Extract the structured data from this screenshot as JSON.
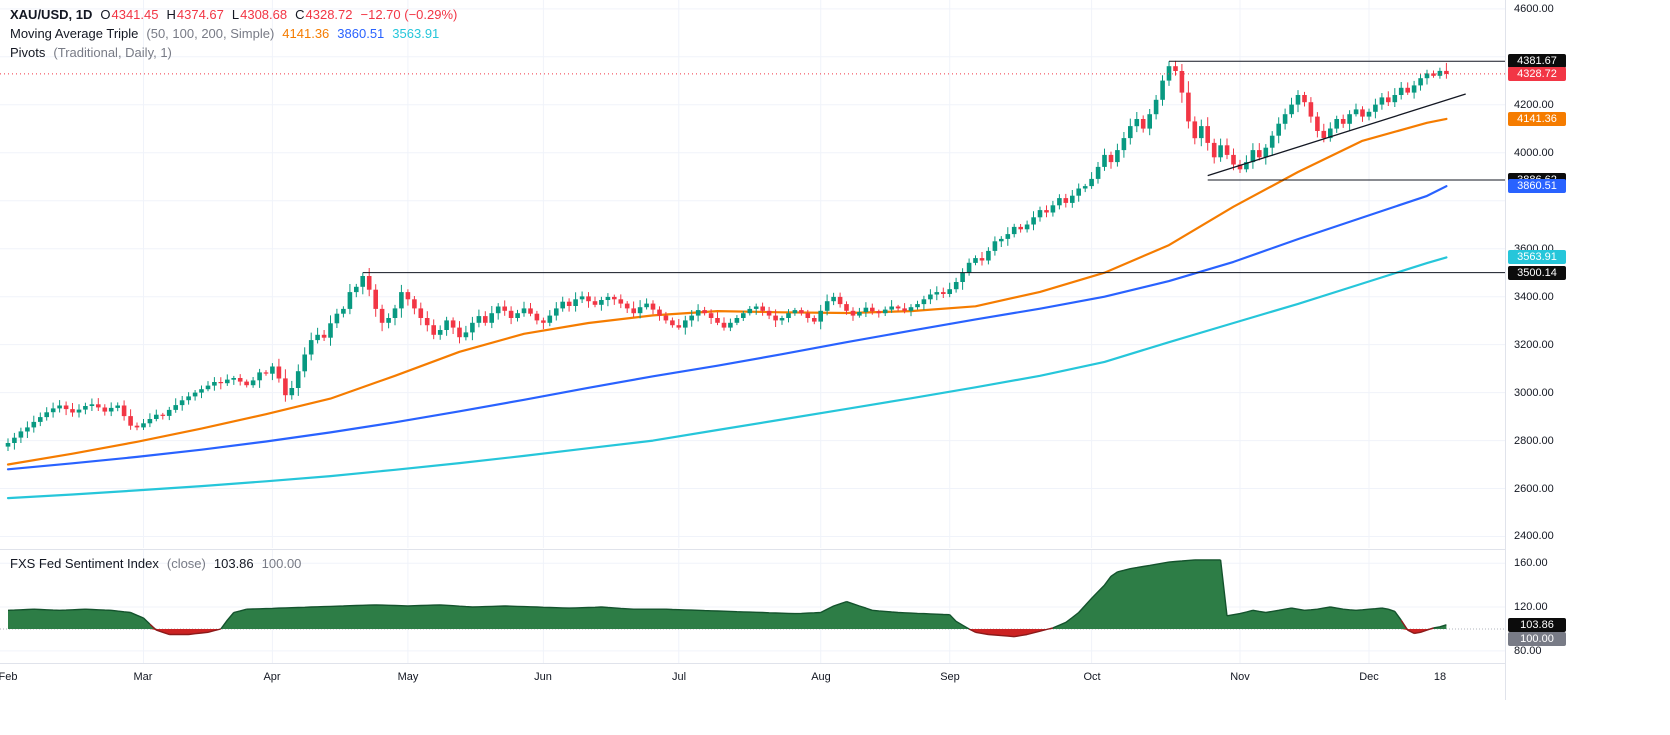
{
  "header": {
    "symbol": "XAU/USD, 1D",
    "ohlc": [
      {
        "k": "O",
        "v": "4341.45"
      },
      {
        "k": "H",
        "v": "4374.67"
      },
      {
        "k": "L",
        "v": "4308.68"
      },
      {
        "k": "C",
        "v": "4328.72"
      }
    ],
    "change": "−12.70 (−0.29%)",
    "ma_indicator": {
      "title": "Moving Average Triple",
      "params": "(50, 100, 200, Simple)",
      "values": [
        "4141.36",
        "3860.51",
        "3563.91"
      ],
      "colors": [
        "#f57c00",
        "#2962ff",
        "#26c6da"
      ]
    },
    "pivots_indicator": {
      "title": "Pivots",
      "params": "(Traditional, Daily, 1)"
    }
  },
  "sentiment_header": {
    "title": "FXS Fed Sentiment Index",
    "params": "(close)",
    "value": "103.86",
    "baseline": "100.00"
  },
  "chart_data": {
    "type": "candlestick",
    "title": "XAU/USD daily candlesticks with Moving Average Triple (50, 100, 200, Simple) and Traditional Daily Pivots; lower pane: FXS Fed Sentiment Index",
    "ylim": [
      2352,
      4637
    ],
    "colors": {
      "up": "#089981",
      "down": "#f23645"
    },
    "price_gridlines": [
      2400,
      2600,
      2800,
      3000,
      3200,
      3400,
      3600,
      3800,
      4000,
      4200,
      4400,
      4600
    ],
    "price_labels": [
      {
        "text": "4600.00",
        "price": 4600
      },
      {
        "text": "4200.00",
        "price": 4200
      },
      {
        "text": "4000.00",
        "price": 4000
      },
      {
        "text": "3600.00",
        "price": 3600
      },
      {
        "text": "3400.00",
        "price": 3400
      },
      {
        "text": "3200.00",
        "price": 3200
      },
      {
        "text": "3000.00",
        "price": 3000
      },
      {
        "text": "2800.00",
        "price": 2800
      },
      {
        "text": "2600.00",
        "price": 2600
      },
      {
        "text": "2400.00",
        "price": 2400
      }
    ],
    "badges": [
      {
        "text": "4381.67",
        "price": 4381.67,
        "bg": "#0c0c0c"
      },
      {
        "text": "4328.72",
        "price": 4328.72,
        "bg": "#f23645"
      },
      {
        "text": "4141.36",
        "price": 4141.36,
        "bg": "#f57c00"
      },
      {
        "text": "3886.62",
        "price": 3886.62,
        "bg": "#0c0c0c"
      },
      {
        "text": "3860.51",
        "price": 3860.51,
        "bg": "#2962ff"
      },
      {
        "text": "3563.91",
        "price": 3563.91,
        "bg": "#26c6da"
      },
      {
        "text": "3500.14",
        "price": 3500.14,
        "bg": "#0c0c0c"
      }
    ],
    "month_starts": [
      {
        "text": "Feb",
        "index": 0
      },
      {
        "text": "Mar",
        "index": 21
      },
      {
        "text": "Apr",
        "index": 41
      },
      {
        "text": "May",
        "index": 62
      },
      {
        "text": "Jun",
        "index": 83
      },
      {
        "text": "Jul",
        "index": 104
      },
      {
        "text": "Aug",
        "index": 126
      },
      {
        "text": "Sep",
        "index": 146
      },
      {
        "text": "Oct",
        "index": 168
      },
      {
        "text": "Nov",
        "index": 191
      },
      {
        "text": "Dec",
        "index": 211
      },
      {
        "text": "18",
        "index": 222,
        "day_label": true
      }
    ],
    "candles": {
      "first_open": 2775,
      "closes": [
        2790,
        2812,
        2838,
        2855,
        2878,
        2898,
        2918,
        2934,
        2946,
        2931,
        2917,
        2929,
        2944,
        2951,
        2938,
        2921,
        2936,
        2946,
        2902,
        2862,
        2855,
        2872,
        2890,
        2908,
        2903,
        2928,
        2948,
        2968,
        2984,
        3000,
        3014,
        3029,
        3044,
        3039,
        3054,
        3061,
        3046,
        3031,
        3051,
        3084,
        3079,
        3109,
        3059,
        2989,
        3019,
        3089,
        3159,
        3219,
        3241,
        3229,
        3289,
        3329,
        3349,
        3419,
        3441,
        3486,
        3429,
        3349,
        3291,
        3311,
        3351,
        3419,
        3389,
        3351,
        3311,
        3281,
        3241,
        3261,
        3301,
        3271,
        3231,
        3251,
        3291,
        3319,
        3291,
        3331,
        3359,
        3341,
        3311,
        3331,
        3351,
        3329,
        3301,
        3291,
        3321,
        3351,
        3379,
        3361,
        3389,
        3401,
        3381,
        3366,
        3386,
        3399,
        3389,
        3371,
        3351,
        3331,
        3356,
        3371,
        3346,
        3321,
        3301,
        3281,
        3271,
        3301,
        3321,
        3344,
        3331,
        3311,
        3291,
        3271,
        3291,
        3311,
        3331,
        3349,
        3359,
        3341,
        3321,
        3301,
        3311,
        3331,
        3344,
        3331,
        3311,
        3296,
        3341,
        3381,
        3399,
        3369,
        3341,
        3321,
        3336,
        3354,
        3339,
        3331,
        3346,
        3359,
        3351,
        3341,
        3356,
        3369,
        3389,
        3409,
        3419,
        3411,
        3431,
        3461,
        3501,
        3541,
        3561,
        3551,
        3591,
        3631,
        3641,
        3661,
        3691,
        3681,
        3701,
        3731,
        3761,
        3751,
        3781,
        3811,
        3791,
        3821,
        3851,
        3861,
        3891,
        3941,
        3991,
        3961,
        4011,
        4061,
        4111,
        4141,
        4101,
        4161,
        4221,
        4301,
        4361,
        4341,
        4251,
        4131,
        4061,
        4111,
        4041,
        3981,
        4031,
        3991,
        3951,
        3931,
        3961,
        4011,
        3981,
        4021,
        4071,
        4121,
        4161,
        4201,
        4241,
        4211,
        4151,
        4091,
        4061,
        4101,
        4141,
        4121,
        4161,
        4181,
        4151,
        4171,
        4201,
        4231,
        4211,
        4241,
        4271,
        4251,
        4281,
        4311,
        4331,
        4321,
        4341.45,
        4328.72
      ],
      "high_overrides": {
        "55": 3500.14,
        "180": 4381.67
      },
      "last": {
        "open": 4341.45,
        "high": 4374.67,
        "low": 4308.68,
        "close": 4328.72
      }
    },
    "ma_sample_indices": [
      0,
      10,
      20,
      30,
      40,
      50,
      60,
      70,
      80,
      90,
      100,
      110,
      120,
      130,
      140,
      150,
      160,
      170,
      180,
      190,
      200,
      210,
      220,
      223
    ],
    "ma_series": [
      {
        "name": "MA 50",
        "color": "#f57c00",
        "values": [
          2700,
          2745,
          2795,
          2850,
          2910,
          2975,
          3070,
          3170,
          3245,
          3290,
          3322,
          3340,
          3335,
          3332,
          3340,
          3360,
          3420,
          3500,
          3615,
          3775,
          3920,
          4050,
          4125,
          4141.36
        ]
      },
      {
        "name": "MA 100",
        "color": "#2962ff",
        "values": [
          2680,
          2705,
          2732,
          2762,
          2796,
          2834,
          2876,
          2922,
          2970,
          3020,
          3068,
          3112,
          3160,
          3210,
          3258,
          3305,
          3350,
          3400,
          3465,
          3545,
          3640,
          3730,
          3820,
          3860.51
        ]
      },
      {
        "name": "MA 200",
        "color": "#26c6da",
        "values": [
          2560,
          2575,
          2592,
          2610,
          2630,
          2652,
          2678,
          2706,
          2736,
          2768,
          2800,
          2844,
          2888,
          2932,
          2976,
          3022,
          3070,
          3128,
          3210,
          3290,
          3370,
          3455,
          3540,
          3563.91
        ]
      }
    ],
    "levels": [
      {
        "price": 4381.67,
        "from_index": 180,
        "color": "#131722"
      },
      {
        "price": 3886.62,
        "from_index": 186,
        "color": "#131722"
      },
      {
        "price": 3500.14,
        "from_index": 55,
        "color": "#131722"
      }
    ],
    "price_line": {
      "price": 4328.72,
      "color": "#f23645"
    },
    "trendline": {
      "from": [
        186,
        3905
      ],
      "to": [
        226,
        4245
      ],
      "color": "#131722"
    },
    "sentiment": {
      "type": "area",
      "title": "FXS Fed Sentiment Index (close)",
      "value": 103.86,
      "baseline": 100,
      "ylim": [
        69,
        172
      ],
      "gridlines": [
        160,
        120,
        80
      ],
      "axis_labels": [
        {
          "text": "160.00",
          "value": 160
        },
        {
          "text": "120.00",
          "value": 120
        },
        {
          "text": "80.00",
          "value": 80
        }
      ],
      "badges": [
        {
          "text": "103.86",
          "value": 103.86,
          "bg": "#0c0c0c"
        },
        {
          "text": "100.00",
          "value": 100,
          "bg": "#787b86"
        }
      ],
      "colors": {
        "above_fill": "#2d7d46",
        "below_fill": "#cc2222",
        "line": "#14532d",
        "below_line": "#8b1a1a"
      },
      "points": [
        [
          0,
          117
        ],
        [
          4,
          118
        ],
        [
          8,
          117
        ],
        [
          12,
          118
        ],
        [
          16,
          117
        ],
        [
          19,
          115
        ],
        [
          21,
          110
        ],
        [
          23,
          99
        ],
        [
          25,
          95
        ],
        [
          28,
          95
        ],
        [
          31,
          97
        ],
        [
          33,
          100
        ],
        [
          34,
          108
        ],
        [
          35,
          115
        ],
        [
          37,
          118
        ],
        [
          42,
          119
        ],
        [
          47,
          120
        ],
        [
          52,
          121
        ],
        [
          57,
          122
        ],
        [
          62,
          121
        ],
        [
          67,
          122
        ],
        [
          72,
          120
        ],
        [
          77,
          121
        ],
        [
          82,
          120
        ],
        [
          87,
          119
        ],
        [
          92,
          120
        ],
        [
          97,
          118
        ],
        [
          102,
          118
        ],
        [
          107,
          117
        ],
        [
          112,
          116
        ],
        [
          117,
          115
        ],
        [
          122,
          114
        ],
        [
          126,
          115
        ],
        [
          128,
          121
        ],
        [
          130,
          125
        ],
        [
          132,
          121
        ],
        [
          134,
          117
        ],
        [
          138,
          115
        ],
        [
          142,
          114
        ],
        [
          146,
          113
        ],
        [
          147,
          107
        ],
        [
          149,
          100
        ],
        [
          150,
          97
        ],
        [
          152,
          95
        ],
        [
          154,
          94
        ],
        [
          156,
          93
        ],
        [
          158,
          95
        ],
        [
          160,
          98
        ],
        [
          162,
          101
        ],
        [
          164,
          106
        ],
        [
          166,
          115
        ],
        [
          168,
          128
        ],
        [
          170,
          140
        ],
        [
          171,
          148
        ],
        [
          172,
          152
        ],
        [
          174,
          155
        ],
        [
          176,
          157
        ],
        [
          178,
          159
        ],
        [
          180,
          161
        ],
        [
          182,
          162
        ],
        [
          184,
          163
        ],
        [
          186,
          163
        ],
        [
          188,
          163
        ],
        [
          189,
          112
        ],
        [
          191,
          114
        ],
        [
          193,
          117
        ],
        [
          195,
          115
        ],
        [
          197,
          117
        ],
        [
          199,
          119
        ],
        [
          201,
          117
        ],
        [
          203,
          118
        ],
        [
          205,
          120
        ],
        [
          207,
          118
        ],
        [
          209,
          117
        ],
        [
          211,
          118
        ],
        [
          213,
          119
        ],
        [
          214,
          118
        ],
        [
          215,
          116
        ],
        [
          216,
          108
        ],
        [
          217,
          99
        ],
        [
          218,
          96
        ],
        [
          219,
          97
        ],
        [
          220,
          99
        ],
        [
          221,
          101
        ],
        [
          222,
          102
        ],
        [
          223,
          103.86
        ]
      ]
    }
  }
}
